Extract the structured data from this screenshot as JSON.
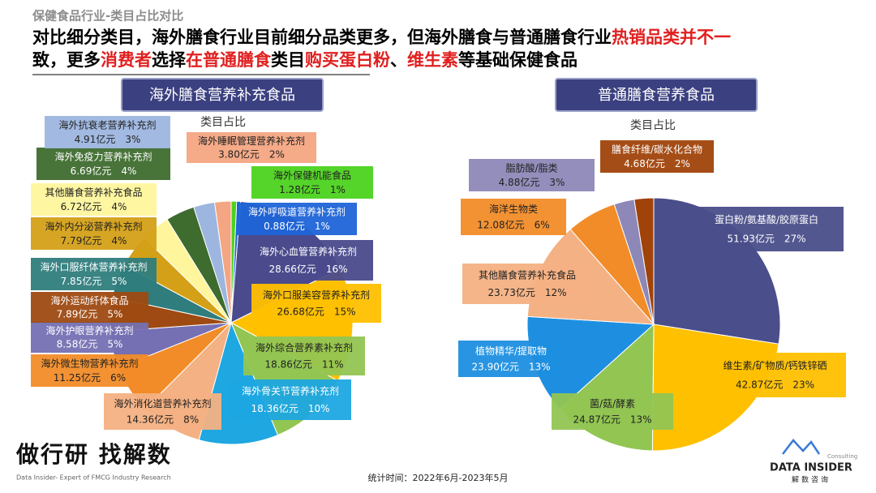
{
  "header": {
    "category": "保健食品行业-类目占比对比",
    "headline": [
      [
        {
          "text": "对比细分类目，海外膳食行业目前细分品类更多，但海外膳食与普通膳食行业",
          "color": "#000000"
        },
        {
          "text": "热销品类并不一",
          "color": "#e02020"
        }
      ],
      [
        {
          "text": "致，更多",
          "color": "#000000"
        },
        {
          "text": "消费者",
          "color": "#e02020"
        },
        {
          "text": "选择",
          "color": "#000000"
        },
        {
          "text": "在普通膳食",
          "color": "#e02020"
        },
        {
          "text": "类目",
          "color": "#000000"
        },
        {
          "text": "购买蛋白粉",
          "color": "#e02020"
        },
        {
          "text": "、",
          "color": "#000000"
        },
        {
          "text": "维生素",
          "color": "#e02020"
        },
        {
          "text": "等基础保健食品",
          "color": "#000000"
        }
      ]
    ]
  },
  "chart_data": [
    {
      "type": "pie",
      "title": "海外膳食营养补充食品",
      "subtitle": "类目占比",
      "categories": [
        "海外保健机能食品",
        "海外呼吸道营养补充剂",
        "海外心血管营养补充剂",
        "海外口服美容营养补充剂",
        "海外综合营养素补充剂",
        "海外骨关节营养补充剂",
        "海外消化道营养补充剂",
        "海外微生物营养补充剂",
        "海外护眼营养补充剂",
        "海外运动纤体食品",
        "海外口服纤体营养补充剂",
        "海外内分泌营养补充剂",
        "其他膳食营养补充食品",
        "海外免疫力营养补充剂",
        "海外抗衰老营养补充剂",
        "海外睡眠管理营养补充剂"
      ],
      "values": [
        1.28,
        0.88,
        28.66,
        26.68,
        18.86,
        18.36,
        14.36,
        11.25,
        8.58,
        7.89,
        7.85,
        7.79,
        6.72,
        6.69,
        4.91,
        3.8
      ],
      "value_labels": [
        "1.28亿元",
        "0.88亿元",
        "28.66亿元",
        "26.68亿元",
        "18.86亿元",
        "18.36亿元",
        "14.36亿元",
        "11.25亿元",
        "8.58亿元",
        "7.89亿元",
        "7.85亿元",
        "7.79亿元",
        "6.72亿元",
        "6.69亿元",
        "4.91亿元",
        "3.80亿元"
      ],
      "shares": [
        1,
        1,
        16,
        15,
        11,
        10,
        8,
        6,
        5,
        5,
        5,
        4,
        4,
        4,
        3,
        2
      ],
      "share_labels": [
        "1%",
        "1%",
        "16%",
        "15%",
        "11%",
        "10%",
        "8%",
        "6%",
        "5%",
        "5%",
        "5%",
        "4%",
        "4%",
        "4%",
        "3%",
        "2%"
      ],
      "colors": [
        "#4cd21e",
        "#1e64d8",
        "#4a4a8c",
        "#ffc000",
        "#92c552",
        "#1ea7e1",
        "#f4b183",
        "#f28c28",
        "#7570b3",
        "#9e4a12",
        "#2f7d7d",
        "#d4a017",
        "#fff59d",
        "#3e6b2e",
        "#9db6e0",
        "#f4a582"
      ]
    },
    {
      "type": "pie",
      "title": "普通膳食营养食品",
      "subtitle": "类目占比",
      "categories": [
        "蛋白粉/氨基酸/胶原蛋白",
        "维生素/矿物质/钙铁锌硒",
        "菌/菇/酵素",
        "植物精华/提取物",
        "其他膳食营养补充食品",
        "海洋生物类",
        "脂肪酸/脂类",
        "膳食纤维/碳水化合物"
      ],
      "values": [
        51.93,
        42.87,
        24.87,
        23.9,
        23.73,
        12.08,
        4.88,
        4.68
      ],
      "value_labels": [
        "51.93亿元",
        "42.87亿元",
        "24.87亿元",
        "23.90亿元",
        "23.73亿元",
        "12.08亿元",
        "4.88亿元",
        "4.68亿元"
      ],
      "shares": [
        27,
        23,
        13,
        13,
        12,
        6,
        3,
        2
      ],
      "share_labels": [
        "27%",
        "23%",
        "13%",
        "13%",
        "12%",
        "6%",
        "3%",
        "2%"
      ],
      "colors": [
        "#4a4e8a",
        "#ffc000",
        "#92c552",
        "#1e8fe0",
        "#f4b183",
        "#f28c28",
        "#8e88b8",
        "#a0430a"
      ]
    }
  ],
  "footer": {
    "slogan": "做行研 找解数",
    "tagline": "Data Insider- Expert of FMCG Industry Research",
    "period": "统计时间：2022年6月-2023年5月",
    "logo": "DATA INSIDER",
    "logo_sub": "Consulting",
    "logo_cn": "解数咨询"
  }
}
